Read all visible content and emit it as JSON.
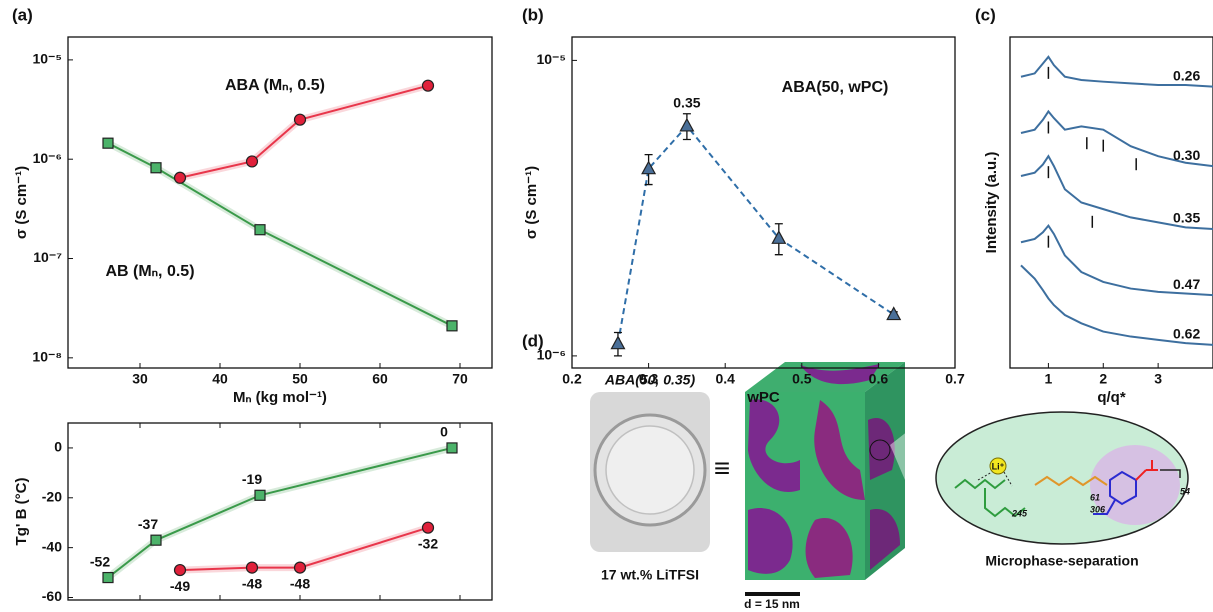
{
  "panels": [
    "(a)",
    "(b)",
    "(c)",
    "(d)"
  ],
  "chart_data": [
    {
      "type": "line",
      "xlabel": "Mₙ (kg mol⁻¹)",
      "ylabel": "σ (S cm⁻¹)",
      "ylog": true,
      "xlim": [
        21,
        74
      ],
      "xticks": [
        30,
        40,
        50,
        60,
        70
      ],
      "ylim": [
        7.9e-09,
        1.7e-05
      ],
      "yticks": [
        {
          "value": 1e-08,
          "label": "10⁻⁸"
        },
        {
          "value": 1e-07,
          "label": "10⁻⁷"
        },
        {
          "value": 1e-06,
          "label": "10⁻⁶"
        },
        {
          "value": 1e-05,
          "label": "10⁻⁵"
        }
      ],
      "annotations": [
        "ABA (Mₙ, 0.5)",
        "AB (Mₙ, 0.5)"
      ],
      "series": [
        {
          "name": "AB",
          "color": "#3a9a4a",
          "marker": "square",
          "marker_color": "#4cb36a",
          "x": [
            26,
            32,
            45,
            69
          ],
          "values": [
            1.45e-06,
            8.2e-07,
            1.95e-07,
            2.1e-08
          ]
        },
        {
          "name": "ABA",
          "color": "#e8364b",
          "marker": "circle",
          "marker_color": "#e0203a",
          "x": [
            35,
            44,
            50,
            66
          ],
          "values": [
            6.5e-07,
            9.5e-07,
            2.5e-06,
            5.5e-06
          ]
        }
      ]
    },
    {
      "type": "line",
      "ylabel": "Tg' B (°C)",
      "xticklabels": false,
      "data_labels": true,
      "xlim": [
        21,
        74
      ],
      "xticks": [
        30,
        40,
        50,
        60,
        70
      ],
      "ylim": [
        -61,
        10
      ],
      "yticks": [
        -60,
        -40,
        -20,
        0
      ],
      "series": [
        {
          "name": "AB",
          "color": "#3a9a4a",
          "marker": "square",
          "marker_color": "#4cb36a",
          "label_color": "#111111",
          "x": [
            26,
            32,
            45,
            69
          ],
          "values": [
            -52,
            -37,
            -19,
            0
          ]
        },
        {
          "name": "ABA",
          "color": "#e8364b",
          "marker": "circle",
          "marker_color": "#e0203a",
          "label_color": "#e8364b",
          "x": [
            35,
            44,
            50,
            66
          ],
          "values": [
            -49,
            -48,
            -48,
            -32
          ]
        }
      ]
    },
    {
      "type": "line",
      "xlabel": "wPC",
      "ylabel": "σ (S cm⁻¹)",
      "ylog": true,
      "dashed": true,
      "highlight": 2,
      "xlim": [
        0.2,
        0.7
      ],
      "xticks": [
        0.2,
        0.3,
        0.4,
        0.5,
        0.6,
        0.7
      ],
      "ylim": [
        9.1e-07,
        1.2e-05
      ],
      "yticks": [
        {
          "value": 1e-06,
          "label": "10⁻⁶"
        },
        {
          "value": 1e-05,
          "label": "10⁻⁵"
        }
      ],
      "annotations": [
        "ABA(50, wPC)"
      ],
      "x": [
        0.26,
        0.3,
        0.35,
        0.47,
        0.62
      ],
      "series": [
        {
          "name": "ABA(50, wPC)",
          "color": "#2f6ea8",
          "marker": "triangle",
          "marker_color": "#4a6f98",
          "values": [
            1.1e-06,
            4.3e-06,
            6e-06,
            2.5e-06,
            1.38e-06
          ],
          "errors": [
            1e-07,
            5e-07,
            6e-07,
            3e-07,
            3e-08
          ]
        }
      ]
    },
    {
      "type": "line",
      "xlabel": "q/q*",
      "ylabel": "Intensity (a.u.)",
      "series_labels": true,
      "xlim": [
        0.3,
        4.0
      ],
      "xticks": [
        1,
        2,
        3
      ],
      "ylim": [
        0,
        10
      ],
      "x": [
        0.5,
        0.75,
        0.9,
        1,
        1.1,
        1.3,
        1.6,
        2,
        2.5,
        3,
        3.5,
        4
      ],
      "series": [
        {
          "name": "0.26",
          "color": "#3d6f9f",
          "values": [
            8.8,
            8.9,
            9.2,
            9.4,
            9.15,
            8.8,
            8.7,
            8.65,
            8.6,
            8.55,
            8.55,
            8.5
          ],
          "peaks": [
            1
          ]
        },
        {
          "name": "0.30",
          "color": "#3d6f9f",
          "values": [
            7.1,
            7.2,
            7.5,
            7.75,
            7.55,
            7.2,
            7.3,
            7.2,
            6.7,
            6.4,
            6.2,
            6.1
          ],
          "peaks": [
            1,
            1.7,
            2,
            2.6
          ]
        },
        {
          "name": "0.35",
          "color": "#3d6f9f",
          "values": [
            5.8,
            5.9,
            6.15,
            6.4,
            6.1,
            5.4,
            5.0,
            4.8,
            4.55,
            4.4,
            4.25,
            4.2
          ],
          "peaks": [
            1,
            1.8
          ]
        },
        {
          "name": "0.47",
          "color": "#3d6f9f",
          "values": [
            3.8,
            3.9,
            4.1,
            4.3,
            4.05,
            3.4,
            2.9,
            2.6,
            2.4,
            2.3,
            2.25,
            2.2
          ],
          "peaks": [
            1
          ]
        },
        {
          "name": "0.62",
          "color": "#3d6f9f",
          "values": [
            3.1,
            2.7,
            2.35,
            2.1,
            1.9,
            1.6,
            1.35,
            1.1,
            0.95,
            0.85,
            0.75,
            0.7
          ]
        }
      ]
    }
  ],
  "diagram": {
    "sample": "ABA(50, 0.35)",
    "salt": "17 wt.% LiTFSI",
    "equiv": "≡",
    "scale": "d = 15 nm",
    "ion": "Li⁺",
    "n1": "245",
    "n2": "61",
    "n3": "306",
    "n4": "54",
    "caption": "Microphase-separation"
  }
}
